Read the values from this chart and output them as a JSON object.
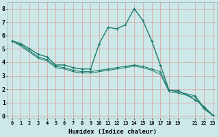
{
  "xlabel": "Humidex (Indice chaleur)",
  "bg_color": "#cce8e8",
  "grid_color": "#d8a8a8",
  "line_color": "#1a7a6a",
  "xlim": [
    -0.5,
    23.5
  ],
  "ylim": [
    -0.2,
    8.5
  ],
  "xticks": [
    0,
    1,
    2,
    3,
    4,
    5,
    6,
    7,
    8,
    9,
    10,
    11,
    12,
    13,
    14,
    15,
    16,
    17,
    18,
    19,
    21,
    22,
    23
  ],
  "yticks": [
    0,
    1,
    2,
    3,
    4,
    5,
    6,
    7,
    8
  ],
  "line1_x": [
    0,
    1,
    2,
    3,
    4,
    5,
    6,
    7,
    8,
    9,
    10,
    11,
    12,
    13,
    14,
    15,
    16,
    17,
    18,
    19,
    21,
    22,
    23
  ],
  "line1_y": [
    5.6,
    5.4,
    5.0,
    4.6,
    4.4,
    3.8,
    3.8,
    3.6,
    3.5,
    3.5,
    5.4,
    6.6,
    6.5,
    6.8,
    8.0,
    7.1,
    5.6,
    3.8,
    1.9,
    1.9,
    1.2,
    0.7,
    0.05
  ],
  "line2_x": [
    0,
    1,
    3,
    4,
    5,
    6,
    7,
    8,
    9,
    10,
    11,
    12,
    13,
    14,
    15,
    16,
    17,
    18,
    19,
    21,
    22,
    23
  ],
  "line2_y": [
    5.6,
    5.3,
    4.4,
    4.2,
    3.7,
    3.6,
    3.4,
    3.3,
    3.3,
    3.4,
    3.5,
    3.6,
    3.7,
    3.8,
    3.7,
    3.5,
    3.3,
    1.9,
    1.8,
    1.5,
    0.6,
    0.05
  ],
  "line3_x": [
    0,
    1,
    3,
    4,
    5,
    6,
    7,
    8,
    9,
    10,
    11,
    12,
    13,
    14,
    15,
    16,
    17,
    18,
    19,
    21,
    22,
    23
  ],
  "line3_y": [
    5.6,
    5.2,
    4.3,
    4.1,
    3.6,
    3.5,
    3.3,
    3.2,
    3.2,
    3.3,
    3.4,
    3.5,
    3.6,
    3.7,
    3.6,
    3.4,
    3.1,
    1.8,
    1.7,
    1.4,
    0.5,
    0.05
  ]
}
